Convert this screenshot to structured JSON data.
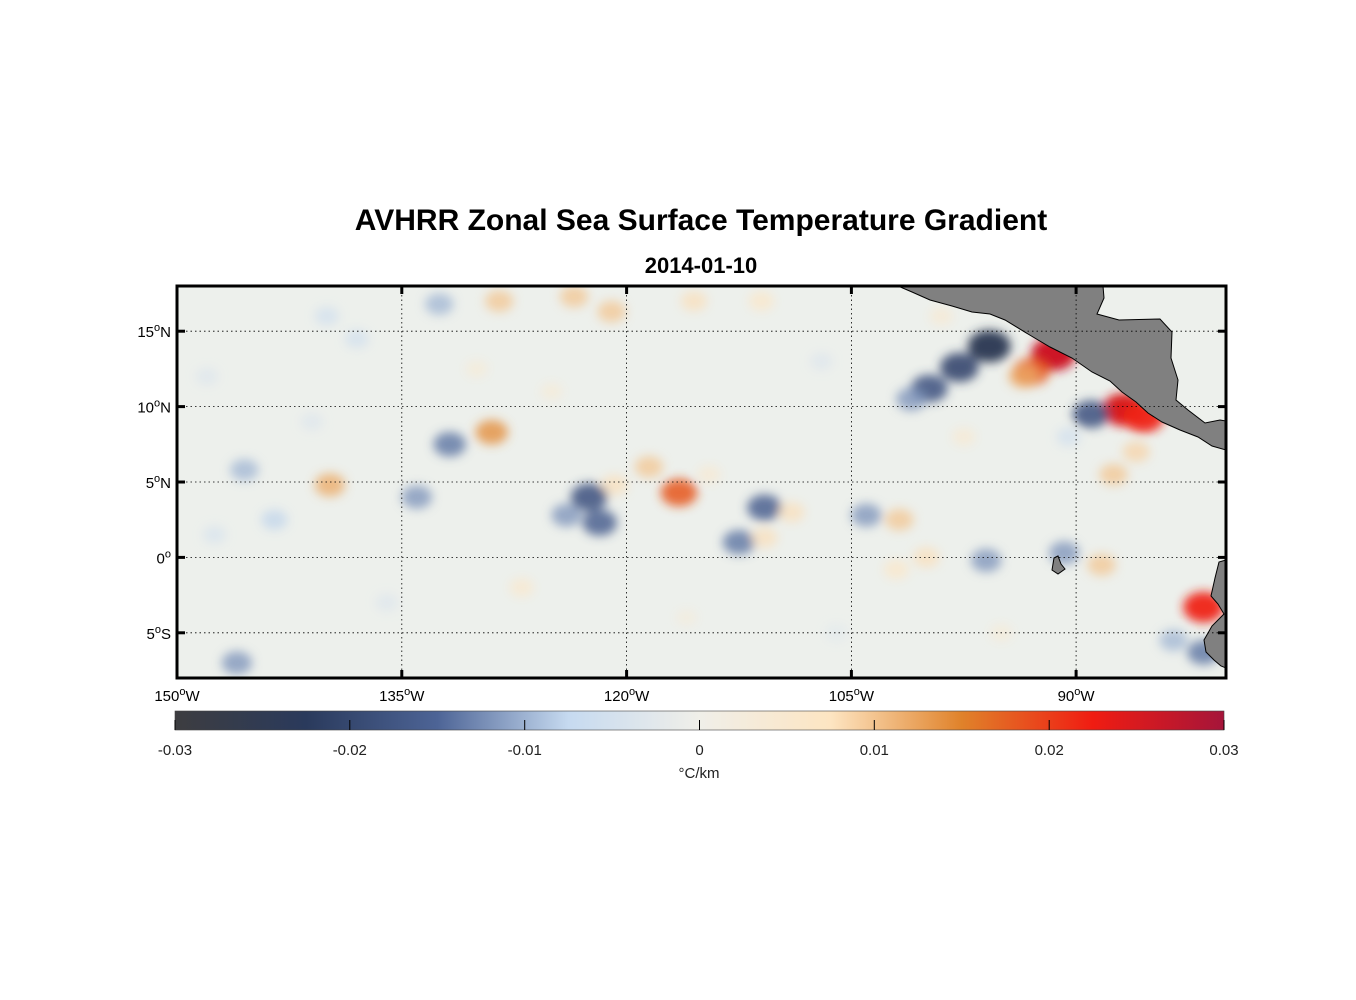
{
  "figure": {
    "title": "AVHRR Zonal Sea Surface Temperature Gradient",
    "date": "2014-01-10"
  },
  "map": {
    "lon_range": [
      -150,
      -80
    ],
    "lat_range": [
      -8,
      18
    ],
    "lat_ticks": [
      {
        "value": 15,
        "num": "15",
        "hemi": "N"
      },
      {
        "value": 10,
        "num": "10",
        "hemi": "N"
      },
      {
        "value": 5,
        "num": "5",
        "hemi": "N"
      },
      {
        "value": 0,
        "num": "0",
        "hemi": ""
      },
      {
        "value": -5,
        "num": "5",
        "hemi": "S"
      }
    ],
    "lon_ticks": [
      {
        "value": -150,
        "num": "150",
        "hemi": "W"
      },
      {
        "value": -135,
        "num": "135",
        "hemi": "W"
      },
      {
        "value": -120,
        "num": "120",
        "hemi": "W"
      },
      {
        "value": -105,
        "num": "105",
        "hemi": "W"
      },
      {
        "value": -90,
        "num": "90",
        "hemi": "W"
      }
    ],
    "grid": true,
    "land_color": "#808080",
    "anomalies": [
      {
        "lon": -91.5,
        "lat": 13.5,
        "value": 0.026
      },
      {
        "lon": -93.0,
        "lat": 12.3,
        "value": 0.018
      },
      {
        "lon": -86.8,
        "lat": 9.8,
        "value": 0.025
      },
      {
        "lon": -85.5,
        "lat": 9.3,
        "value": 0.022
      },
      {
        "lon": -81.5,
        "lat": -3.3,
        "value": 0.022
      },
      {
        "lon": -95.8,
        "lat": 14.0,
        "value": -0.024
      },
      {
        "lon": -97.8,
        "lat": 12.6,
        "value": -0.02
      },
      {
        "lon": -99.8,
        "lat": 11.2,
        "value": -0.018
      },
      {
        "lon": -101.0,
        "lat": 10.5,
        "value": -0.012
      },
      {
        "lon": -89.0,
        "lat": 9.5,
        "value": -0.018
      },
      {
        "lon": -116.5,
        "lat": 4.3,
        "value": 0.018
      },
      {
        "lon": -129.0,
        "lat": 8.3,
        "value": 0.014
      },
      {
        "lon": -139.8,
        "lat": 4.8,
        "value": 0.012
      },
      {
        "lon": -118.5,
        "lat": 6.0,
        "value": 0.01
      },
      {
        "lon": -120.8,
        "lat": 4.8,
        "value": 0.008
      },
      {
        "lon": -122.5,
        "lat": 4.0,
        "value": -0.018
      },
      {
        "lon": -121.8,
        "lat": 2.3,
        "value": -0.016
      },
      {
        "lon": -124.0,
        "lat": 2.8,
        "value": -0.012
      },
      {
        "lon": -110.8,
        "lat": 3.3,
        "value": -0.016
      },
      {
        "lon": -112.5,
        "lat": 1.0,
        "value": -0.014
      },
      {
        "lon": -104.0,
        "lat": 2.8,
        "value": -0.012
      },
      {
        "lon": -134.0,
        "lat": 4.0,
        "value": -0.012
      },
      {
        "lon": -131.8,
        "lat": 7.5,
        "value": -0.014
      },
      {
        "lon": -145.5,
        "lat": 5.8,
        "value": -0.01
      },
      {
        "lon": -96.0,
        "lat": -0.2,
        "value": -0.012
      },
      {
        "lon": -90.8,
        "lat": 0.3,
        "value": -0.012
      },
      {
        "lon": -93.5,
        "lat": 12.0,
        "value": 0.012
      },
      {
        "lon": -97.5,
        "lat": 8.0,
        "value": 0.005
      },
      {
        "lon": -101.8,
        "lat": 2.5,
        "value": 0.01
      },
      {
        "lon": -100.0,
        "lat": 0.0,
        "value": 0.008
      },
      {
        "lon": -88.3,
        "lat": -0.5,
        "value": 0.01
      },
      {
        "lon": -87.5,
        "lat": 5.5,
        "value": 0.01
      },
      {
        "lon": -86.0,
        "lat": 7.0,
        "value": 0.009
      },
      {
        "lon": -109.0,
        "lat": 3.0,
        "value": 0.008
      },
      {
        "lon": -110.8,
        "lat": 1.3,
        "value": 0.008
      },
      {
        "lon": -102.0,
        "lat": -0.8,
        "value": 0.007
      },
      {
        "lon": -132.5,
        "lat": 16.8,
        "value": -0.01
      },
      {
        "lon": -128.5,
        "lat": 17.0,
        "value": 0.01
      },
      {
        "lon": -123.5,
        "lat": 17.3,
        "value": 0.01
      },
      {
        "lon": -121.0,
        "lat": 16.3,
        "value": 0.01
      },
      {
        "lon": -115.5,
        "lat": 17.0,
        "value": 0.008
      },
      {
        "lon": -111.0,
        "lat": 17.0,
        "value": 0.007
      },
      {
        "lon": -146.0,
        "lat": -7.0,
        "value": -0.012
      },
      {
        "lon": -81.5,
        "lat": -6.3,
        "value": -0.014
      },
      {
        "lon": -83.5,
        "lat": -5.5,
        "value": -0.01
      },
      {
        "lon": -138.0,
        "lat": 14.5,
        "value": -0.006
      },
      {
        "lon": -140.0,
        "lat": 16.0,
        "value": -0.006
      },
      {
        "lon": -143.5,
        "lat": 2.5,
        "value": -0.008
      },
      {
        "lon": -127.0,
        "lat": -2.0,
        "value": 0.006
      },
      {
        "lon": -90.5,
        "lat": 8.0,
        "value": -0.006
      },
      {
        "lon": -99.0,
        "lat": 16.0,
        "value": 0.005
      },
      {
        "lon": -114.5,
        "lat": 5.5,
        "value": 0.005
      },
      {
        "lon": -107.0,
        "lat": 13.0,
        "value": -0.004
      },
      {
        "lon": -148.0,
        "lat": 12.0,
        "value": -0.004
      },
      {
        "lon": -125.0,
        "lat": 11.0,
        "value": 0.004
      },
      {
        "lon": -130.0,
        "lat": 12.5,
        "value": 0.004
      },
      {
        "lon": -136.0,
        "lat": -3.0,
        "value": -0.004
      },
      {
        "lon": -116.0,
        "lat": -4.0,
        "value": 0.003
      },
      {
        "lon": -106.0,
        "lat": -5.0,
        "value": -0.003
      },
      {
        "lon": -95.0,
        "lat": -5.0,
        "value": 0.004
      },
      {
        "lon": -141.0,
        "lat": 9.0,
        "value": -0.004
      },
      {
        "lon": -147.5,
        "lat": 1.5,
        "value": -0.005
      }
    ]
  },
  "colorbar": {
    "min": -0.03,
    "max": 0.03,
    "ticks": [
      "-0.03",
      "-0.02",
      "-0.01",
      "0",
      "0.01",
      "0.02",
      "0.03"
    ],
    "unit_label": "°C/km",
    "colors": [
      "#3d3d40",
      "#2a3a5c",
      "#4d6496",
      "#c6daf0",
      "#f0efe9",
      "#fde5c2",
      "#e0822a",
      "#f01c12",
      "#a5153a"
    ]
  },
  "icons": [
    "land-mass"
  ]
}
